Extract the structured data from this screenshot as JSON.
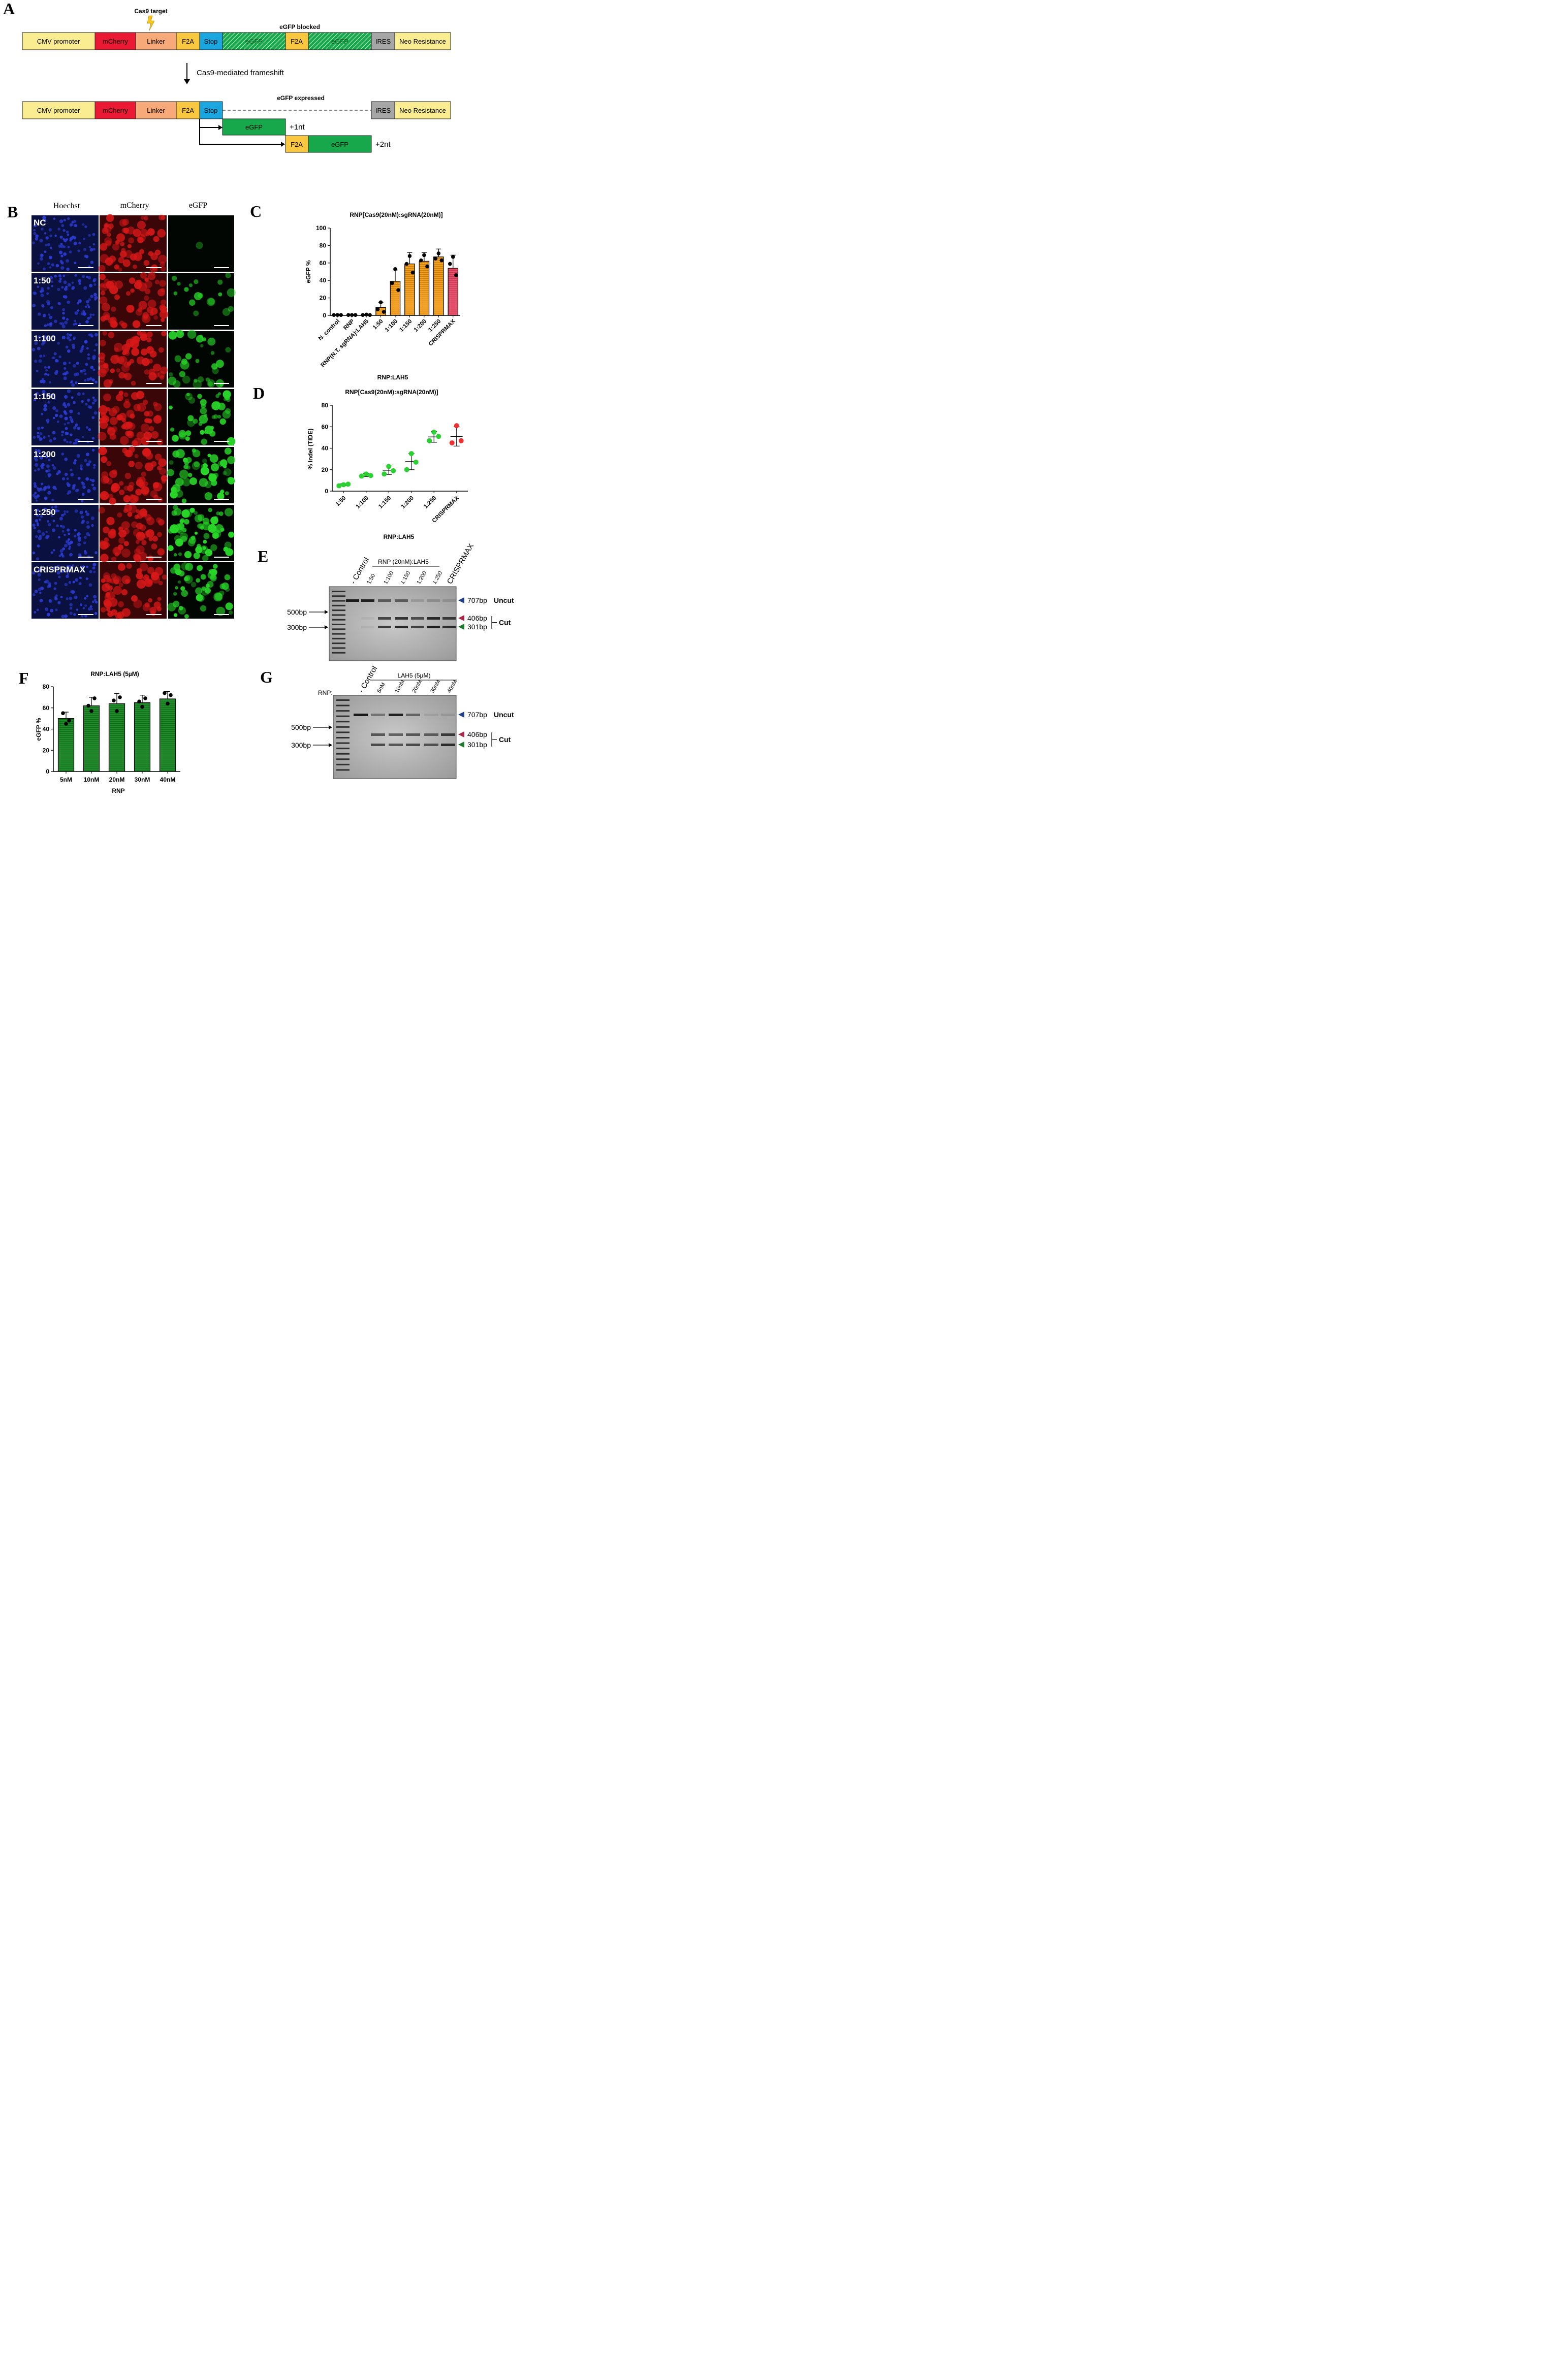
{
  "panels": {
    "A": "A",
    "B": "B",
    "C": "C",
    "D": "D",
    "E": "E",
    "F": "F",
    "G": "G"
  },
  "panelA": {
    "cas9_target": "Cas9 target",
    "top_title": "eGFP blocked",
    "bottom_title": "eGFP expressed",
    "arrow_label": "Cas9-mediated frameshift",
    "segments": {
      "cmv": "CMV promoter",
      "mcherry": "mCherry",
      "linker": "Linker",
      "f2a": "F2A",
      "stop": "Stop",
      "egfp": "eGFP",
      "ires": "IRES",
      "neo": "Neo Resistance"
    },
    "plus1": "+1nt",
    "plus2": "+2nt",
    "colors": {
      "cmv": "#f9ec91",
      "mcherry": "#ea1a35",
      "linker": "#f7a97a",
      "f2a": "#f9c740",
      "stop": "#1aa7e0",
      "egfp_solid": "#16a84a",
      "egfp_hatch_bg": "#6cc88a",
      "ires": "#a6a6a6",
      "neo": "#f9ec91"
    }
  },
  "panelB": {
    "channels": [
      "Hoechst",
      "mCherry",
      "eGFP"
    ],
    "rows": [
      "NC",
      "1:50",
      "1:100",
      "1:150",
      "1:200",
      "1:250",
      "CRISPRMAX"
    ],
    "egfp_intensity": [
      0.02,
      0.25,
      0.45,
      0.6,
      0.75,
      0.9,
      0.7
    ]
  },
  "panelC": {
    "chart_data": {
      "type": "bar",
      "title": "RNP[Cas9(20nM):sgRNA(20nM)]",
      "ylabel": "eGFP %",
      "xlabel": "RNP:LAH5",
      "ylim": [
        0,
        100
      ],
      "yticks": [
        0,
        20,
        40,
        60,
        80,
        100
      ],
      "categories": [
        "N. control",
        "RNP",
        "RNP(N.T. sgRNA):LAH5",
        "1:50",
        "1:100",
        "1:150",
        "1:200",
        "1:250",
        "CRISPRMAX"
      ],
      "values": [
        0.5,
        0.5,
        0.5,
        9,
        39,
        59,
        62,
        67,
        54
      ],
      "sd": [
        0,
        0,
        0.5,
        6,
        13,
        13,
        10,
        9,
        15
      ],
      "points": [
        [
          0.5,
          0.5,
          0.5
        ],
        [
          0.5,
          0.5,
          0.5
        ],
        [
          0.5,
          1,
          0.5
        ],
        [
          15,
          7,
          4
        ],
        [
          53,
          37,
          29
        ],
        [
          68,
          59,
          49
        ],
        [
          69,
          63,
          56
        ],
        [
          71,
          65,
          63
        ],
        [
          67,
          59,
          46
        ]
      ],
      "bar_colors": [
        "#000000",
        "#000000",
        "#000000",
        "#f4a020",
        "#f4a020",
        "#f4a020",
        "#f4a020",
        "#f4a020",
        "#e8506a"
      ]
    }
  },
  "panelD": {
    "chart_data": {
      "type": "scatter",
      "title": "RNP[Cas9(20nM):sgRNA(20nM)]",
      "ylabel": "% Indel (TIDE)",
      "xlabel": "RNP:LAH5",
      "ylim": [
        0,
        80
      ],
      "yticks": [
        0,
        20,
        40,
        60,
        80
      ],
      "categories": [
        "1:50",
        "1:100",
        "1:150",
        "1:200",
        "1:250",
        "CRISPRMAX"
      ],
      "means": [
        6,
        15,
        19.5,
        27.5,
        50.5,
        51
      ],
      "sd": [
        1,
        1.5,
        4,
        7.5,
        5,
        9
      ],
      "points": [
        [
          5,
          6,
          6.5
        ],
        [
          14,
          16,
          14.5
        ],
        [
          16,
          23,
          19
        ],
        [
          20,
          35,
          27
        ],
        [
          47,
          55,
          51
        ],
        [
          45,
          61,
          47
        ]
      ],
      "colors": [
        "#2bd130",
        "#2bd130",
        "#2bd130",
        "#2bd130",
        "#2bd130",
        "#f03030"
      ]
    }
  },
  "panelE": {
    "header": "RNP (20nM):LAH5",
    "lane_labels": [
      "- Control",
      "1:50",
      "1:100",
      "1:150",
      "1:200",
      "1:250",
      "CRISPRMAX"
    ],
    "ladder_500": "500bp",
    "ladder_300": "300bp",
    "band_707": "707bp",
    "band_406": "406bp",
    "band_301": "301bp",
    "uncut": "Uncut",
    "cut": "Cut"
  },
  "panelF": {
    "chart_data": {
      "type": "bar",
      "title": "RNP:LAH5 (5µM)",
      "ylabel": "eGFP %",
      "xlabel": "RNP",
      "ylim": [
        0,
        80
      ],
      "yticks": [
        0,
        20,
        40,
        60,
        80
      ],
      "categories": [
        "5nM",
        "10nM",
        "20nM",
        "30nM",
        "40nM"
      ],
      "values": [
        50,
        62,
        64,
        65,
        68.5
      ],
      "sd": [
        6,
        8,
        9.5,
        7,
        7
      ],
      "points": [
        [
          45,
          55,
          48
        ],
        [
          57,
          62,
          69
        ],
        [
          57,
          67,
          70
        ],
        [
          61,
          66,
          69
        ],
        [
          64,
          74,
          72
        ]
      ]
    }
  },
  "panelG": {
    "header": "LAH5 (5µM)",
    "rnp_label": "RNP:",
    "lane_labels": [
      "- Control",
      "5nM",
      "10nM",
      "20nM",
      "30nM",
      "40nM"
    ],
    "ladder_500": "500bp",
    "ladder_300": "300bp",
    "band_707": "707bp",
    "band_406": "406bp",
    "band_301": "301bp",
    "uncut": "Uncut",
    "cut": "Cut"
  }
}
